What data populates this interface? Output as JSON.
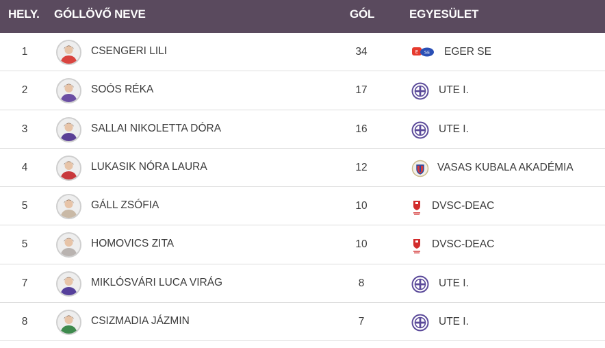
{
  "header": {
    "rank": "HELY.",
    "name": "GÓLLÖVŐ NEVE",
    "goals": "GÓL",
    "club": "EGYESÜLET"
  },
  "rows": [
    {
      "rank": "1",
      "name": "CSENGERI LILI",
      "goals": "34",
      "club": "EGER SE",
      "club_icon": "eger-se-logo",
      "avatar_color": "#d9443f"
    },
    {
      "rank": "2",
      "name": "SOÓS RÉKA",
      "goals": "17",
      "club": "UTE I.",
      "club_icon": "ute-crest",
      "avatar_color": "#6b4ea3"
    },
    {
      "rank": "3",
      "name": "SALLAI NIKOLETTA DÓRA",
      "goals": "16",
      "club": "UTE I.",
      "club_icon": "ute-crest",
      "avatar_color": "#5a3f96"
    },
    {
      "rank": "4",
      "name": "LUKASIK NÓRA LAURA",
      "goals": "12",
      "club": "VASAS KUBALA AKADÉMIA",
      "club_icon": "vasas-crest",
      "avatar_color": "#c8383c"
    },
    {
      "rank": "5",
      "name": "GÁLL ZSÓFIA",
      "goals": "10",
      "club": "DVSC-DEAC",
      "club_icon": "dvsc-deac-logo",
      "avatar_color": "#c9b9a6"
    },
    {
      "rank": "5",
      "name": "HOMOVICS ZITA",
      "goals": "10",
      "club": "DVSC-DEAC",
      "club_icon": "dvsc-deac-logo",
      "avatar_color": "#b9b3b0"
    },
    {
      "rank": "7",
      "name": "MIKLÓSVÁRI LUCA VIRÁG",
      "goals": "8",
      "club": "UTE I.",
      "club_icon": "ute-crest",
      "avatar_color": "#56409b"
    },
    {
      "rank": "8",
      "name": "CSIZMADIA JÁZMIN",
      "goals": "7",
      "club": "UTE I.",
      "club_icon": "ute-crest",
      "avatar_color": "#3e8a4d"
    }
  ],
  "colors": {
    "header_bg": "#5a4a5e",
    "ute_purple": "#5b4a9a",
    "eger_red": "#e63a2e",
    "eger_blue": "#2a4fb5",
    "dvsc_red": "#d22c2c"
  }
}
